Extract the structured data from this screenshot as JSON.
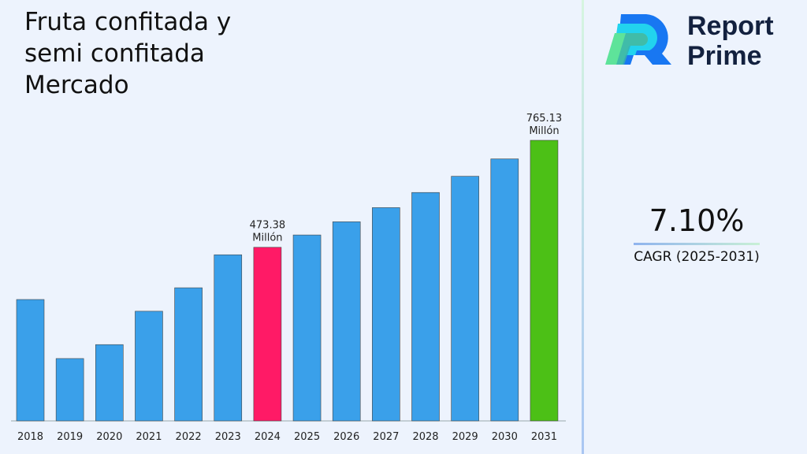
{
  "chart_data": {
    "type": "bar",
    "title": "Fruta confitada y semi confitada Mercado",
    "categories": [
      "2018",
      "2019",
      "2020",
      "2021",
      "2022",
      "2023",
      "2024",
      "2025",
      "2026",
      "2027",
      "2028",
      "2029",
      "2030",
      "2031"
    ],
    "values": [
      331,
      170,
      208,
      299,
      363,
      453,
      473.38,
      506.99,
      542.98,
      581.53,
      622.82,
      667.04,
      714.4,
      765.13
    ],
    "annotations": [
      {
        "category": "2024",
        "label": "473.38",
        "unit": "Millón"
      },
      {
        "category": "2031",
        "label": "765.13",
        "unit": "Millón"
      }
    ],
    "colors": {
      "default": "#3aa0ea",
      "highlight_2024": "#ff1a66",
      "highlight_2031": "#4cc016"
    },
    "ylim": [
      0,
      765.13
    ],
    "grid": false
  },
  "brand": {
    "line1": "Report",
    "line2": "Prime"
  },
  "cagr": {
    "value": "7.10%",
    "label": "CAGR (2025-2031)"
  }
}
